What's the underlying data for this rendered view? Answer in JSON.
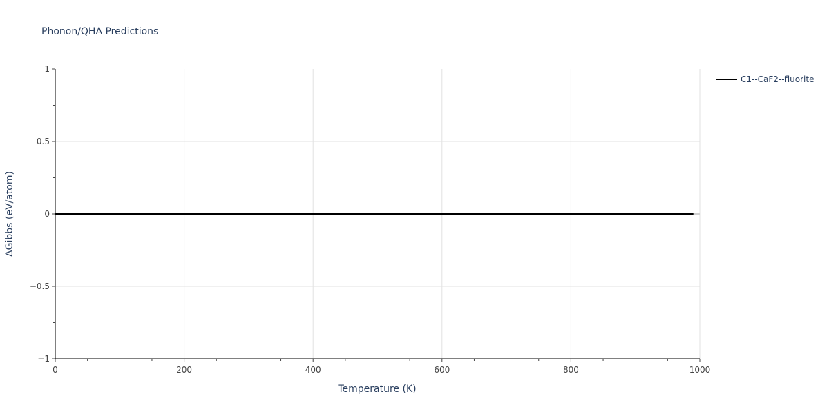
{
  "chart_data": {
    "type": "line",
    "title": "Phonon/QHA Predictions",
    "xlabel": "Temperature (K)",
    "ylabel": "ΔGibbs (eV/atom)",
    "xlim": [
      0,
      1000
    ],
    "ylim": [
      -1,
      1
    ],
    "xticks": [
      0,
      200,
      400,
      600,
      800,
      1000
    ],
    "xtick_labels": [
      "0",
      "200",
      "400",
      "600",
      "800",
      "1000"
    ],
    "yticks": [
      -1,
      -0.5,
      0,
      0.5,
      1
    ],
    "ytick_labels": [
      "−1",
      "−0.5",
      "0",
      "0.5",
      "1"
    ],
    "grid": true,
    "legend_position": "top-right (outside)",
    "series": [
      {
        "name": "C1--CaF2--fluorite",
        "color": "#000000",
        "x": [
          0,
          990
        ],
        "y": [
          0,
          0
        ]
      }
    ]
  }
}
